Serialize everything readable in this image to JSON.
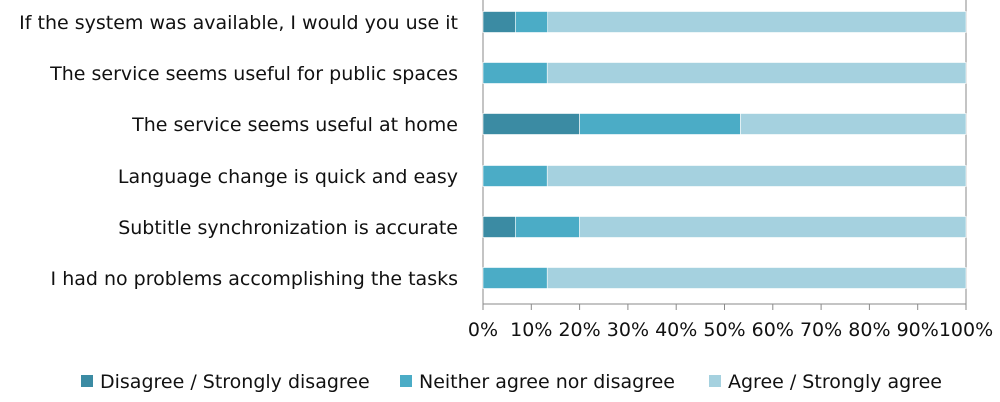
{
  "chart_data": {
    "type": "bar",
    "orientation": "horizontal",
    "stacked": true,
    "percent_stacked": true,
    "categories": [
      "If the system was available, I would you use it",
      "The service seems useful for public spaces",
      "The service seems useful at home",
      "Language change is quick and easy",
      "Subtitle synchronization is accurate",
      "I had no problems accomplishing the tasks"
    ],
    "series": [
      {
        "name": "Disagree / Strongly disagree",
        "values": [
          6.7,
          0,
          20,
          0,
          6.7,
          0
        ],
        "color": "#3b8ba3"
      },
      {
        "name": "Neither agree nor disagree",
        "values": [
          6.7,
          13.3,
          33.3,
          13.3,
          13.3,
          13.3
        ],
        "color": "#4bacc6"
      },
      {
        "name": "Agree / Strongly agree",
        "values": [
          86.6,
          86.7,
          46.7,
          86.7,
          80,
          86.7
        ],
        "color": "#a5d1df"
      }
    ],
    "x_ticks": [
      "0%",
      "10%",
      "20%",
      "30%",
      "40%",
      "50%",
      "60%",
      "70%",
      "80%",
      "90%",
      "100%"
    ],
    "xlim": [
      0,
      100
    ],
    "title": "",
    "xlabel": "",
    "ylabel": "",
    "grid": false,
    "legend_position": "bottom"
  }
}
